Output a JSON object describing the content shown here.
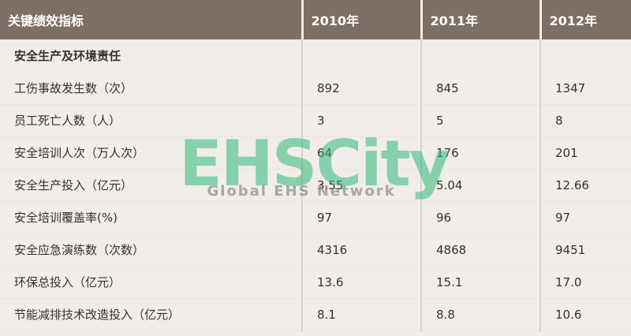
{
  "header": {
    "metric": "关键绩效指标",
    "y2010": "2010年",
    "y2011": "2011年",
    "y2012": "2012年"
  },
  "section_title": "安全生产及环境责任",
  "rows": [
    {
      "label": "工伤事故发生数（次）",
      "v2010": "892",
      "v2011": "845",
      "v2012": "1347"
    },
    {
      "label": "员工死亡人数（人）",
      "v2010": "3",
      "v2011": "5",
      "v2012": "8"
    },
    {
      "label": "安全培训人次（万人次）",
      "v2010": "64",
      "v2011": "176",
      "v2012": "201"
    },
    {
      "label": "安全生产投入（亿元）",
      "v2010": "3.55",
      "v2011": "5.04",
      "v2012": "12.66"
    },
    {
      "label": "安全培训覆盖率(%)",
      "v2010": "97",
      "v2011": "96",
      "v2012": "97"
    },
    {
      "label": "安全应急演练数（次数）",
      "v2010": "4316",
      "v2011": "4868",
      "v2012": "9451"
    },
    {
      "label": "环保总投入（亿元）",
      "v2010": "13.6",
      "v2011": "15.1",
      "v2012": "17.0"
    },
    {
      "label": "节能减排技术改造投入（亿元）",
      "v2010": "8.1",
      "v2011": "8.8",
      "v2012": "10.6"
    }
  ],
  "watermark": {
    "logo_text": "EHSCity",
    "tagline": "Global EHS Network",
    "color": "#2fb87a"
  }
}
